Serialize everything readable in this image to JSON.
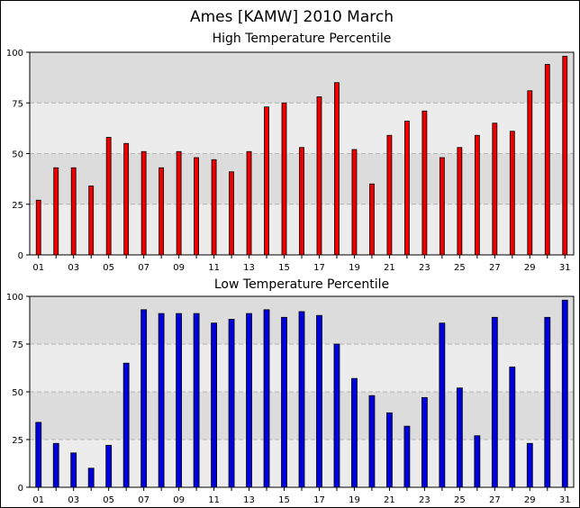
{
  "title": "Ames [KAMW] 2010 March",
  "colors": {
    "band_dark": "#dcdcdc",
    "band_light": "#ececec",
    "high_bar": "#ee0000",
    "low_bar": "#0000dd",
    "bar_edge": "#000000",
    "grid": "#b4b4b4"
  },
  "chart_data": [
    {
      "type": "bar",
      "title": "High Temperature Percentile",
      "categories": [
        "01",
        "02",
        "03",
        "04",
        "05",
        "06",
        "07",
        "08",
        "09",
        "10",
        "11",
        "12",
        "13",
        "14",
        "15",
        "16",
        "17",
        "18",
        "19",
        "20",
        "21",
        "22",
        "23",
        "24",
        "25",
        "26",
        "27",
        "28",
        "29",
        "30",
        "31"
      ],
      "x_tick_labels": [
        "01",
        "03",
        "05",
        "07",
        "09",
        "11",
        "13",
        "15",
        "17",
        "19",
        "21",
        "23",
        "25",
        "27",
        "29",
        "31"
      ],
      "y_ticks": [
        0,
        25,
        50,
        75,
        100
      ],
      "ylim": [
        0,
        100
      ],
      "grid": true,
      "bar_color": "#ee0000",
      "values": [
        27,
        43,
        43,
        34,
        58,
        55,
        51,
        43,
        51,
        48,
        47,
        41,
        51,
        73,
        75,
        53,
        78,
        85,
        52,
        35,
        59,
        66,
        71,
        48,
        53,
        59,
        65,
        61,
        81,
        94,
        98
      ]
    },
    {
      "type": "bar",
      "title": "Low Temperature Percentile",
      "categories": [
        "01",
        "02",
        "03",
        "04",
        "05",
        "06",
        "07",
        "08",
        "09",
        "10",
        "11",
        "12",
        "13",
        "14",
        "15",
        "16",
        "17",
        "18",
        "19",
        "20",
        "21",
        "22",
        "23",
        "24",
        "25",
        "26",
        "27",
        "28",
        "29",
        "30",
        "31"
      ],
      "x_tick_labels": [
        "01",
        "03",
        "05",
        "07",
        "09",
        "11",
        "13",
        "15",
        "17",
        "19",
        "21",
        "23",
        "25",
        "27",
        "29",
        "31"
      ],
      "y_ticks": [
        0,
        25,
        50,
        75,
        100
      ],
      "ylim": [
        0,
        100
      ],
      "grid": true,
      "bar_color": "#0000dd",
      "values": [
        34,
        23,
        18,
        10,
        22,
        65,
        93,
        91,
        91,
        91,
        86,
        88,
        91,
        93,
        89,
        92,
        90,
        75,
        57,
        48,
        39,
        32,
        47,
        86,
        52,
        27,
        89,
        63,
        23,
        89,
        98
      ]
    }
  ]
}
